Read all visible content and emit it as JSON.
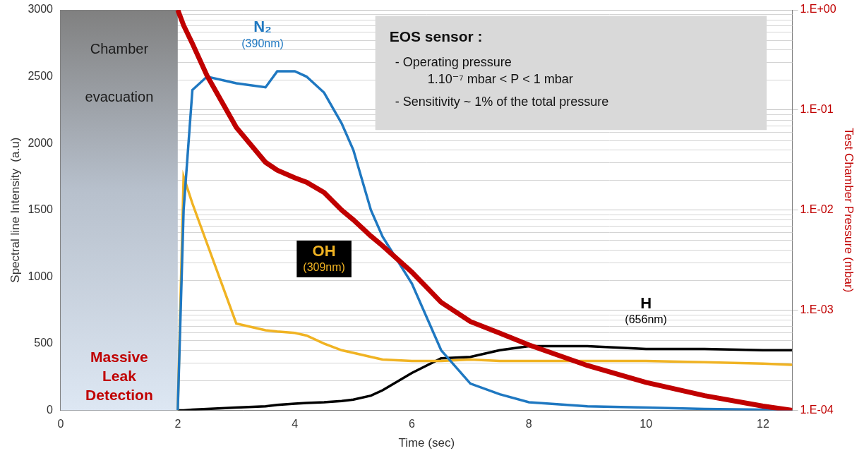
{
  "chart_data": {
    "type": "line",
    "x": [
      2,
      2.1,
      2.25,
      2.5,
      3,
      3.5,
      3.7,
      4,
      4.2,
      4.5,
      4.8,
      5,
      5.3,
      5.5,
      6,
      6.5,
      7,
      7.5,
      8,
      9,
      10,
      11,
      12,
      12.5
    ],
    "xlim": [
      0,
      12.5
    ],
    "xticks": [
      0,
      2,
      4,
      6,
      8,
      10,
      12
    ],
    "ylim": [
      0,
      3000
    ],
    "yticks": [
      0,
      500,
      1000,
      1500,
      2000,
      2500,
      3000
    ],
    "y2lim": [
      0.0001,
      1
    ],
    "y2ticks": [
      {
        "value": 0.0001,
        "label": "1.E-04"
      },
      {
        "value": 0.001,
        "label": "1.E-03"
      },
      {
        "value": 0.01,
        "label": "1.E-02"
      },
      {
        "value": 0.1,
        "label": "1.E-01"
      },
      {
        "value": 1,
        "label": "1.E+00"
      }
    ],
    "log": "y2",
    "grid": true,
    "xlabel": "Time (sec)",
    "ylabel": "Spectral line Intensity  (a.u)",
    "y2label": "Test Chamber Pressure (mbar)",
    "series": [
      {
        "name": "N₂ (390nm)",
        "color": "#1f78c1",
        "values": [
          0,
          1500,
          2400,
          2500,
          2450,
          2420,
          2540,
          2540,
          2500,
          2380,
          2150,
          1950,
          1500,
          1300,
          950,
          450,
          200,
          120,
          60,
          30,
          20,
          10,
          5,
          0
        ]
      },
      {
        "name": "OH (309nm)",
        "color": "#f0b323",
        "values": [
          0,
          1750,
          1550,
          1250,
          650,
          600,
          590,
          580,
          560,
          500,
          450,
          430,
          400,
          380,
          370,
          370,
          380,
          370,
          370,
          370,
          370,
          360,
          350,
          340
        ]
      },
      {
        "name": "H (656nm)",
        "color": "#000000",
        "values": [
          0,
          0,
          5,
          10,
          20,
          30,
          40,
          50,
          55,
          60,
          70,
          80,
          110,
          150,
          280,
          390,
          400,
          450,
          480,
          480,
          460,
          460,
          450,
          450
        ]
      },
      {
        "color": "#c00000",
        "axis": "y2",
        "values": [
          1,
          0.7,
          0.46,
          0.22,
          0.067,
          0.03,
          0.025,
          0.021,
          0.019,
          0.015,
          0.01,
          0.008,
          0.0055,
          0.0044,
          0.0024,
          0.0012,
          0.00077,
          0.00059,
          0.00045,
          0.00028,
          0.00019,
          0.00014,
          0.00011,
          0.0001
        ]
      }
    ],
    "shaded_region": {
      "x": [
        0,
        2
      ],
      "text": "Chamber evacuation"
    },
    "annotations": [
      {
        "text": "Massive Leak Detection",
        "color": "#c00000"
      }
    ],
    "text_box": [
      "EOS sensor :",
      "- Operating pressure",
      "1.10⁻⁷ mbar < P < 1 mbar",
      "- Sensitivity ~ 1% of the total pressure"
    ]
  }
}
